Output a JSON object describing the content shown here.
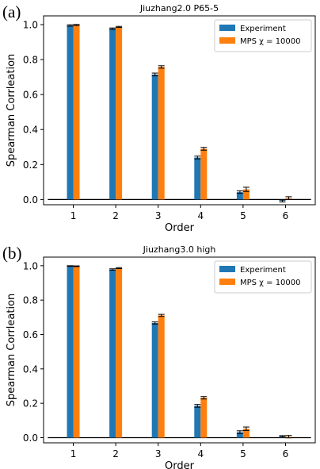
{
  "chart_data": [
    {
      "panel_label": "(a)",
      "type": "bar",
      "title": "Jiuzhang2.0 P65-5",
      "xlabel": "Order",
      "ylabel": "Spearman Corrleation",
      "categories": [
        "1",
        "2",
        "3",
        "4",
        "5",
        "6"
      ],
      "ylim": [
        -0.03,
        1.05
      ],
      "yticks": [
        "0.0",
        "0.2",
        "0.4",
        "0.6",
        "0.8",
        "1.0"
      ],
      "legend_position": "top-right",
      "grid": false,
      "series": [
        {
          "name": "Experiment",
          "color": "#1f77b4",
          "values": [
            0.995,
            0.977,
            0.715,
            0.24,
            0.042,
            -0.008
          ],
          "errors": [
            0.004,
            0.004,
            0.008,
            0.008,
            0.007,
            0.006
          ]
        },
        {
          "name": "MPS χ = 10000",
          "color": "#ff7f0e",
          "values": [
            0.998,
            0.987,
            0.758,
            0.29,
            0.058,
            0.008
          ],
          "errors": [
            0.003,
            0.003,
            0.007,
            0.008,
            0.012,
            0.008
          ]
        }
      ]
    },
    {
      "panel_label": "(b)",
      "type": "bar",
      "title": "Jiuzhang3.0 high",
      "xlabel": "Order",
      "ylabel": "Spearman Corrleation",
      "categories": [
        "1",
        "2",
        "3",
        "4",
        "5",
        "6"
      ],
      "ylim": [
        -0.03,
        1.05
      ],
      "yticks": [
        "0.0",
        "0.2",
        "0.4",
        "0.6",
        "0.8",
        "1.0"
      ],
      "legend_position": "top-right",
      "grid": false,
      "series": [
        {
          "name": "Experiment",
          "color": "#1f77b4",
          "values": [
            0.998,
            0.978,
            0.667,
            0.185,
            0.032,
            0.008
          ],
          "errors": [
            0.002,
            0.004,
            0.006,
            0.008,
            0.008,
            0.004
          ]
        },
        {
          "name": "MPS χ = 10000",
          "color": "#ff7f0e",
          "values": [
            0.997,
            0.986,
            0.711,
            0.232,
            0.052,
            0.006
          ],
          "errors": [
            0.002,
            0.003,
            0.006,
            0.007,
            0.01,
            0.007
          ]
        }
      ]
    }
  ]
}
